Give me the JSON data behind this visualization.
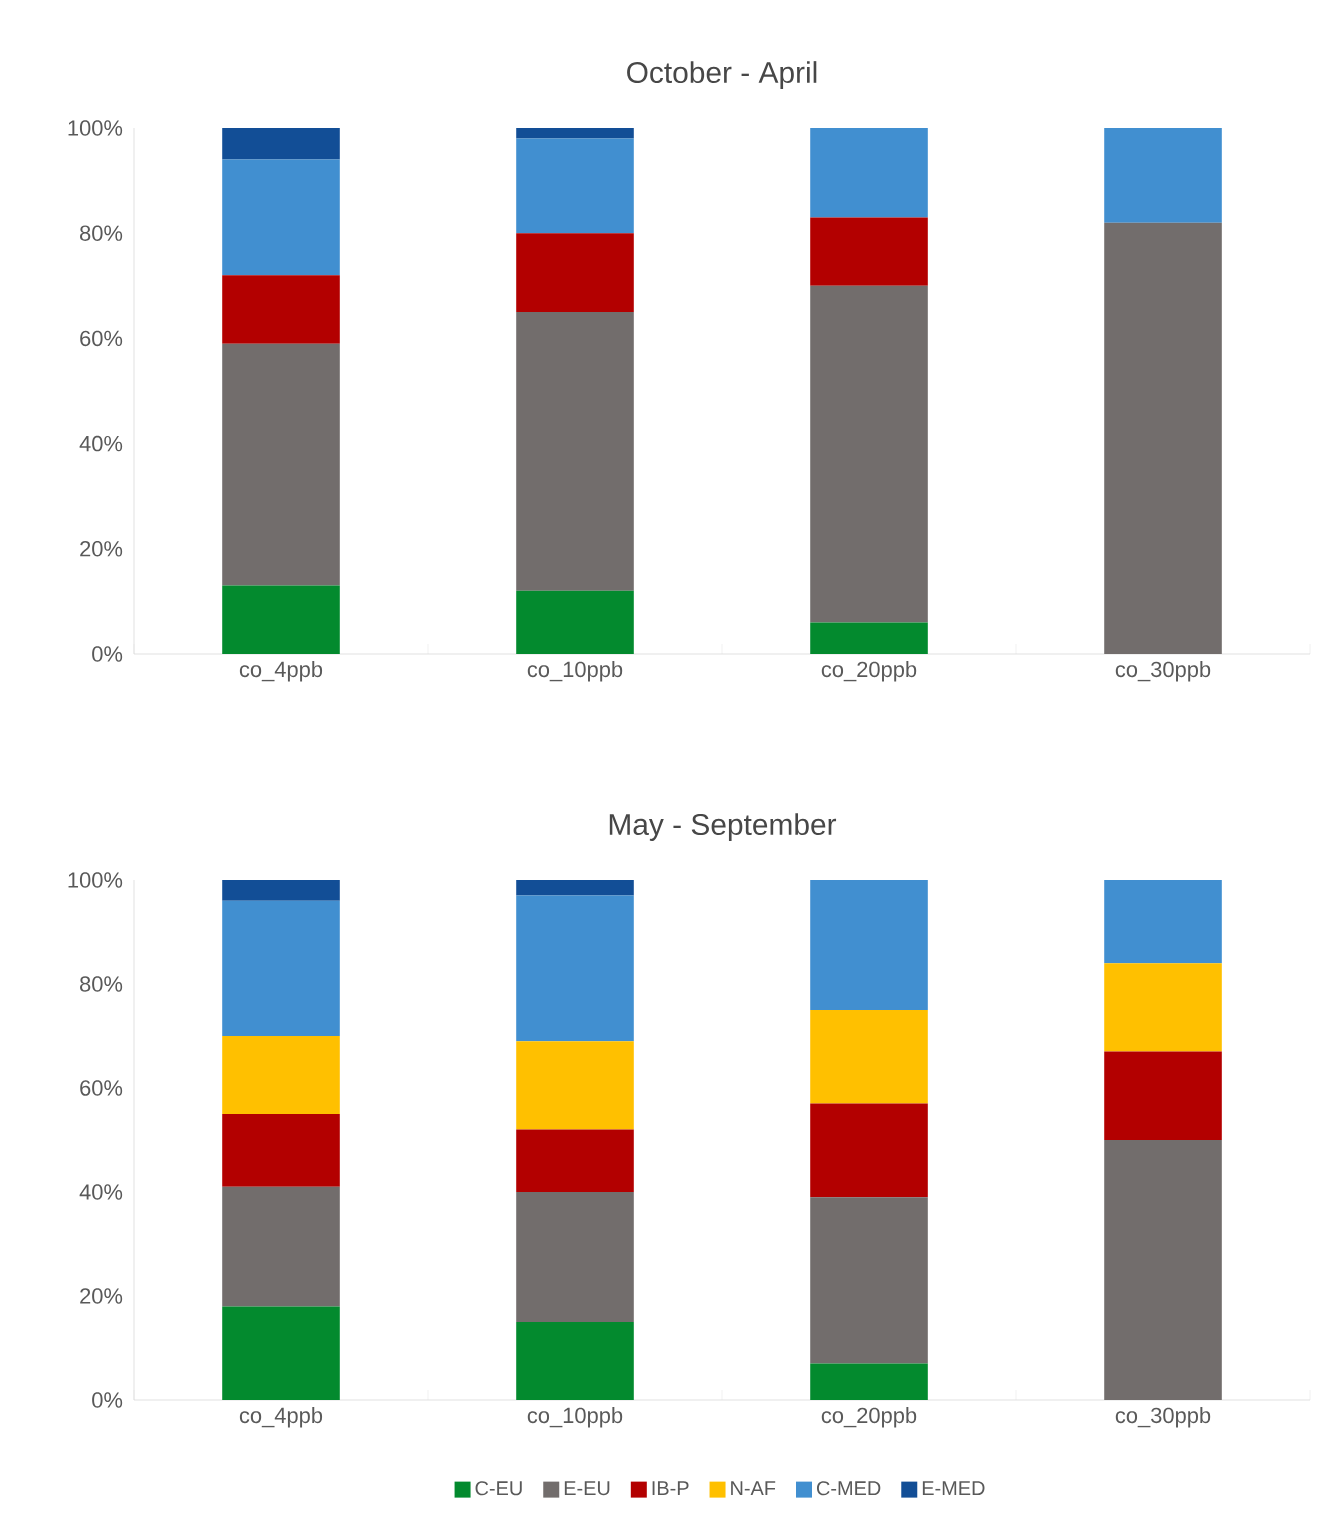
{
  "chart_data": [
    {
      "type": "bar",
      "title": "October - April",
      "stacked": true,
      "categories": [
        "co_4ppb",
        "co_10ppb",
        "co_20ppb",
        "co_30ppb"
      ],
      "ylim": [
        0,
        100
      ],
      "yticks": [
        {
          "value": 0,
          "label": "0%"
        },
        {
          "value": 20,
          "label": "20%"
        },
        {
          "value": 40,
          "label": "40%"
        },
        {
          "value": 60,
          "label": "60%"
        },
        {
          "value": 80,
          "label": "80%"
        },
        {
          "value": 100,
          "label": "100%"
        }
      ],
      "series": [
        {
          "color": "#038a2e",
          "values": [
            13,
            12,
            6,
            0
          ]
        },
        {
          "color": "#726d6c",
          "values": [
            46,
            53,
            64,
            82
          ]
        },
        {
          "color": "#b30000",
          "values": [
            13,
            15,
            13,
            0
          ]
        },
        {
          "color": "#418fd0",
          "values": [
            22,
            18,
            17,
            18
          ]
        },
        {
          "color": "#124e96",
          "values": [
            6,
            2,
            0,
            0
          ]
        }
      ]
    },
    {
      "type": "bar",
      "title": "May - September",
      "stacked": true,
      "legend": "bottom",
      "categories": [
        "co_4ppb",
        "co_10ppb",
        "co_20ppb",
        "co_30ppb"
      ],
      "ylim": [
        0,
        100
      ],
      "yticks": [
        {
          "value": 0,
          "label": "0%"
        },
        {
          "value": 20,
          "label": "20%"
        },
        {
          "value": 40,
          "label": "40%"
        },
        {
          "value": 60,
          "label": "60%"
        },
        {
          "value": 80,
          "label": "80%"
        },
        {
          "value": 100,
          "label": "100%"
        }
      ],
      "series": [
        {
          "name": "C-EU",
          "color": "#038a2e",
          "values": [
            18,
            15,
            7,
            0
          ]
        },
        {
          "name": "E-EU",
          "color": "#726d6c",
          "values": [
            23,
            25,
            32,
            50
          ]
        },
        {
          "name": "IB-P",
          "color": "#b30000",
          "values": [
            14,
            12,
            18,
            17
          ]
        },
        {
          "name": "N-AF",
          "color": "#ffc000",
          "values": [
            15,
            17,
            18,
            17
          ]
        },
        {
          "name": "C-MED",
          "color": "#418fd0",
          "values": [
            26,
            28,
            25,
            16
          ]
        },
        {
          "name": "E-MED",
          "color": "#124e96",
          "values": [
            4,
            3,
            0,
            0
          ]
        }
      ]
    }
  ]
}
